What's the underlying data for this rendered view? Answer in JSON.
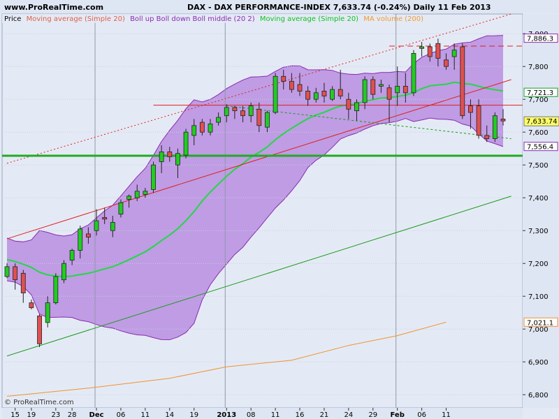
{
  "header": {
    "site": "www.ProRealTime.com",
    "title": "DAX - DAX PERFORMANCE-INDEX   7,633.74 (-0.24%)   Daily  11 Feb 2013"
  },
  "footer": {
    "copyright": "© ProRealTime.com"
  },
  "legend": [
    {
      "text": "Price",
      "color": "#000000"
    },
    {
      "text": "Moving average (Simple 20)",
      "color": "#e0604a"
    },
    {
      "text": "Boll up Boll down Boll middle (20 2)",
      "color": "#8a2bb0"
    },
    {
      "text": "Moving average (Simple 20)",
      "color": "#10c020"
    },
    {
      "text": "MA volume (200)",
      "color": "#f39a30"
    }
  ],
  "colors": {
    "up_candle": "#22cc22",
    "down_candle": "#e05050",
    "band_fill": "#b98ee0",
    "band_line": "#8a2bb0",
    "ma_green": "#22d844",
    "ma200": "#f0922e",
    "support_line": "#22aa22",
    "trend_red": "#e02020",
    "trend_green": "#1a9a1a",
    "price_box_bg": "#ffff66"
  },
  "chart_data": {
    "type": "candlestick",
    "ylim": [
      6760,
      7960
    ],
    "yticks": [
      "7,900",
      "7,800",
      "7,700",
      "7,600",
      "7,500",
      "7,400",
      "7,300",
      "7,200",
      "7,100",
      "7,000",
      "6,900",
      "6,800"
    ],
    "ytick_values": [
      7900,
      7800,
      7700,
      7600,
      7500,
      7400,
      7300,
      7200,
      7100,
      7000,
      6900,
      6800
    ],
    "xticks": [
      {
        "label": "15",
        "i": 1
      },
      {
        "label": "19",
        "i": 3
      },
      {
        "label": "23",
        "i": 6
      },
      {
        "label": "28",
        "i": 8
      },
      {
        "label": "Dec",
        "i": 11,
        "bold": true
      },
      {
        "label": "06",
        "i": 14
      },
      {
        "label": "11",
        "i": 17
      },
      {
        "label": "14",
        "i": 20
      },
      {
        "label": "19",
        "i": 23
      },
      {
        "label": "2013",
        "i": 27,
        "bold": true
      },
      {
        "label": "08",
        "i": 30
      },
      {
        "label": "11",
        "i": 33
      },
      {
        "label": "16",
        "i": 36
      },
      {
        "label": "21",
        "i": 39
      },
      {
        "label": "24",
        "i": 42
      },
      {
        "label": "29",
        "i": 45
      },
      {
        "label": "Feb",
        "i": 48,
        "bold": true
      },
      {
        "label": "06",
        "i": 51
      },
      {
        "label": "11",
        "i": 54
      }
    ],
    "separators": [
      11,
      27,
      48
    ],
    "candles": [
      [
        7160,
        7200,
        7155,
        7190
      ],
      [
        7190,
        7200,
        7120,
        7150
      ],
      [
        7170,
        7180,
        7080,
        7110
      ],
      [
        7080,
        7090,
        7060,
        7065
      ],
      [
        7040,
        7045,
        6945,
        6955
      ],
      [
        7020,
        7100,
        7005,
        7080
      ],
      [
        7080,
        7170,
        7075,
        7160
      ],
      [
        7150,
        7210,
        7140,
        7200
      ],
      [
        7210,
        7245,
        7195,
        7240
      ],
      [
        7240,
        7315,
        7215,
        7305
      ],
      [
        7290,
        7310,
        7260,
        7280
      ],
      [
        7300,
        7365,
        7285,
        7330
      ],
      [
        7340,
        7370,
        7320,
        7335
      ],
      [
        7300,
        7345,
        7280,
        7325
      ],
      [
        7350,
        7395,
        7340,
        7385
      ],
      [
        7395,
        7410,
        7370,
        7405
      ],
      [
        7400,
        7440,
        7390,
        7420
      ],
      [
        7410,
        7430,
        7400,
        7420
      ],
      [
        7425,
        7510,
        7415,
        7500
      ],
      [
        7510,
        7560,
        7475,
        7540
      ],
      [
        7540,
        7555,
        7510,
        7525
      ],
      [
        7500,
        7550,
        7460,
        7535
      ],
      [
        7530,
        7610,
        7520,
        7600
      ],
      [
        7590,
        7640,
        7560,
        7620
      ],
      [
        7630,
        7640,
        7590,
        7600
      ],
      [
        7600,
        7640,
        7590,
        7625
      ],
      [
        7630,
        7660,
        7620,
        7645
      ],
      [
        7650,
        7685,
        7630,
        7675
      ],
      [
        7675,
        7680,
        7640,
        7665
      ],
      [
        7665,
        7680,
        7630,
        7650
      ],
      [
        7650,
        7690,
        7630,
        7680
      ],
      [
        7670,
        7690,
        7600,
        7620
      ],
      [
        7615,
        7665,
        7600,
        7660
      ],
      [
        7660,
        7780,
        7655,
        7770
      ],
      [
        7770,
        7790,
        7730,
        7755
      ],
      [
        7755,
        7780,
        7720,
        7730
      ],
      [
        7745,
        7780,
        7710,
        7725
      ],
      [
        7725,
        7740,
        7680,
        7700
      ],
      [
        7700,
        7735,
        7690,
        7720
      ],
      [
        7725,
        7750,
        7690,
        7710
      ],
      [
        7700,
        7740,
        7695,
        7730
      ],
      [
        7730,
        7790,
        7700,
        7710
      ],
      [
        7700,
        7720,
        7640,
        7670
      ],
      [
        7665,
        7700,
        7635,
        7690
      ],
      [
        7690,
        7770,
        7670,
        7760
      ],
      [
        7760,
        7770,
        7700,
        7715
      ],
      [
        7740,
        7760,
        7720,
        7745
      ],
      [
        7735,
        7745,
        7630,
        7700
      ],
      [
        7720,
        7800,
        7680,
        7740
      ],
      [
        7740,
        7780,
        7690,
        7720
      ],
      [
        7720,
        7850,
        7710,
        7840
      ],
      [
        7855,
        7875,
        7830,
        7860
      ],
      [
        7860,
        7870,
        7815,
        7830
      ],
      [
        7870,
        7885,
        7800,
        7825
      ],
      [
        7820,
        7840,
        7790,
        7800
      ],
      [
        7830,
        7870,
        7790,
        7850
      ],
      [
        7860,
        7870,
        7640,
        7650
      ],
      [
        7680,
        7700,
        7610,
        7660
      ],
      [
        7680,
        7700,
        7580,
        7590
      ],
      [
        7590,
        7620,
        7570,
        7580
      ],
      [
        7580,
        7660,
        7570,
        7650
      ],
      [
        7640,
        7670,
        7620,
        7634
      ]
    ],
    "price_label": "7,633.74",
    "right_labels": [
      {
        "text": "7,886.3",
        "value": 7886.3,
        "color": "#8a2bb0"
      },
      {
        "text": "7,721.3",
        "value": 7721.3,
        "color": "#10a020"
      },
      {
        "text": "7,556.4",
        "value": 7556.4,
        "color": "#8a2bb0"
      },
      {
        "text": "7,021.1",
        "value": 7021.1,
        "color": "#f0922e"
      }
    ],
    "support_level": 7528,
    "resistance_level": 7682,
    "top_dashed_level": 7862,
    "trend_red": [
      [
        0,
        7275
      ],
      [
        62,
        7760
      ]
    ],
    "trend_red_dotted": [
      [
        0,
        7505
      ],
      [
        62,
        7960
      ]
    ],
    "trend_green": [
      [
        0,
        6918
      ],
      [
        62,
        7405
      ]
    ],
    "trend_green_dotted": [
      [
        27,
        7680
      ],
      [
        62,
        7580
      ]
    ],
    "ma200": [
      [
        0,
        6795
      ],
      [
        10,
        6820
      ],
      [
        20,
        6850
      ],
      [
        27,
        6885
      ],
      [
        35,
        6905
      ],
      [
        42,
        6950
      ],
      [
        48,
        6980
      ],
      [
        54,
        7021
      ]
    ]
  }
}
